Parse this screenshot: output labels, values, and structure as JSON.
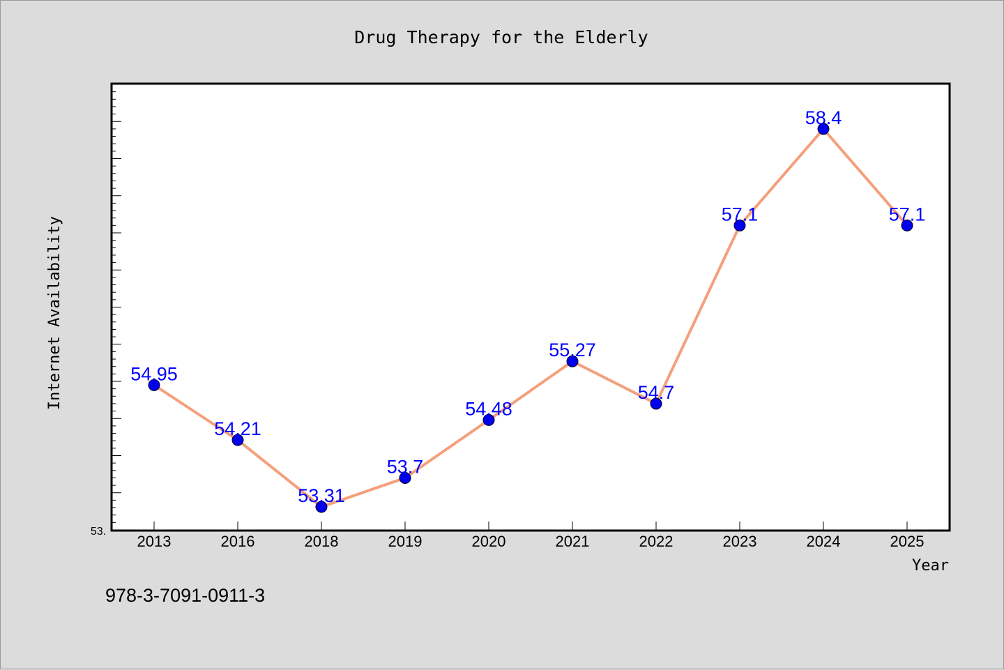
{
  "chart_data": {
    "type": "line",
    "title": "Drug Therapy for the Elderly",
    "xlabel": "Year",
    "ylabel": "Internet Availability",
    "categories": [
      "2013",
      "2016",
      "2018",
      "2019",
      "2020",
      "2021",
      "2022",
      "2023",
      "2024",
      "2025"
    ],
    "series": [
      {
        "values": [
          54.95,
          54.21,
          53.31,
          53.7,
          54.48,
          55.27,
          54.7,
          57.1,
          58.4,
          57.1
        ],
        "data_labels": [
          "54.95",
          "54.21",
          "53.31",
          "53.7",
          "54.48",
          "55.27",
          "54.7",
          "57.1",
          "58.4",
          "57.1"
        ]
      }
    ],
    "ylim": [
      53.0,
      59.0
    ],
    "y_tick_label": "53.",
    "grid": false,
    "line_color": "#f4a07c",
    "marker_color": "#0000ee",
    "label_color": "#0000ff"
  },
  "footer": {
    "isbn": "978-3-7091-0911-3"
  }
}
